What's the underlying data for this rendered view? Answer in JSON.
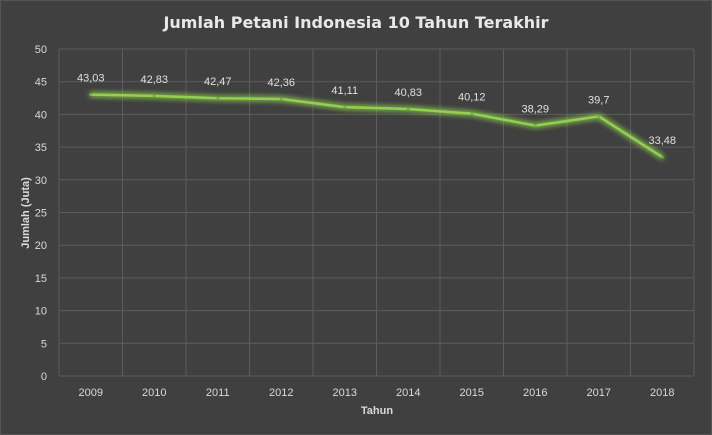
{
  "chart_data": {
    "type": "line",
    "title": "Jumlah Petani Indonesia 10 Tahun Terakhir",
    "xlabel": "Tahun",
    "ylabel": "Jumlah (Juta)",
    "categories": [
      "2009",
      "2010",
      "2011",
      "2012",
      "2013",
      "2014",
      "2015",
      "2016",
      "2017",
      "2018"
    ],
    "series": [
      {
        "values": [
          43.03,
          42.83,
          42.47,
          42.36,
          41.11,
          40.83,
          40.12,
          38.29,
          39.7,
          33.48
        ],
        "data_labels": [
          "43,03",
          "42,83",
          "42,47",
          "42,36",
          "41,11",
          "40,83",
          "40,12",
          "38,29",
          "39,7",
          "33,48"
        ],
        "color": "#70ad47"
      }
    ],
    "ylim": [
      0,
      50
    ],
    "yticks": [
      "0",
      "5",
      "10",
      "15",
      "20",
      "25",
      "30",
      "35",
      "40",
      "45",
      "50"
    ],
    "grid": true,
    "legend": "none"
  },
  "colors": {
    "background": "#404040",
    "grid": "#5c5c5c",
    "text": "#d9d9d9",
    "line": "#70ad47",
    "glow": "#92d050"
  }
}
